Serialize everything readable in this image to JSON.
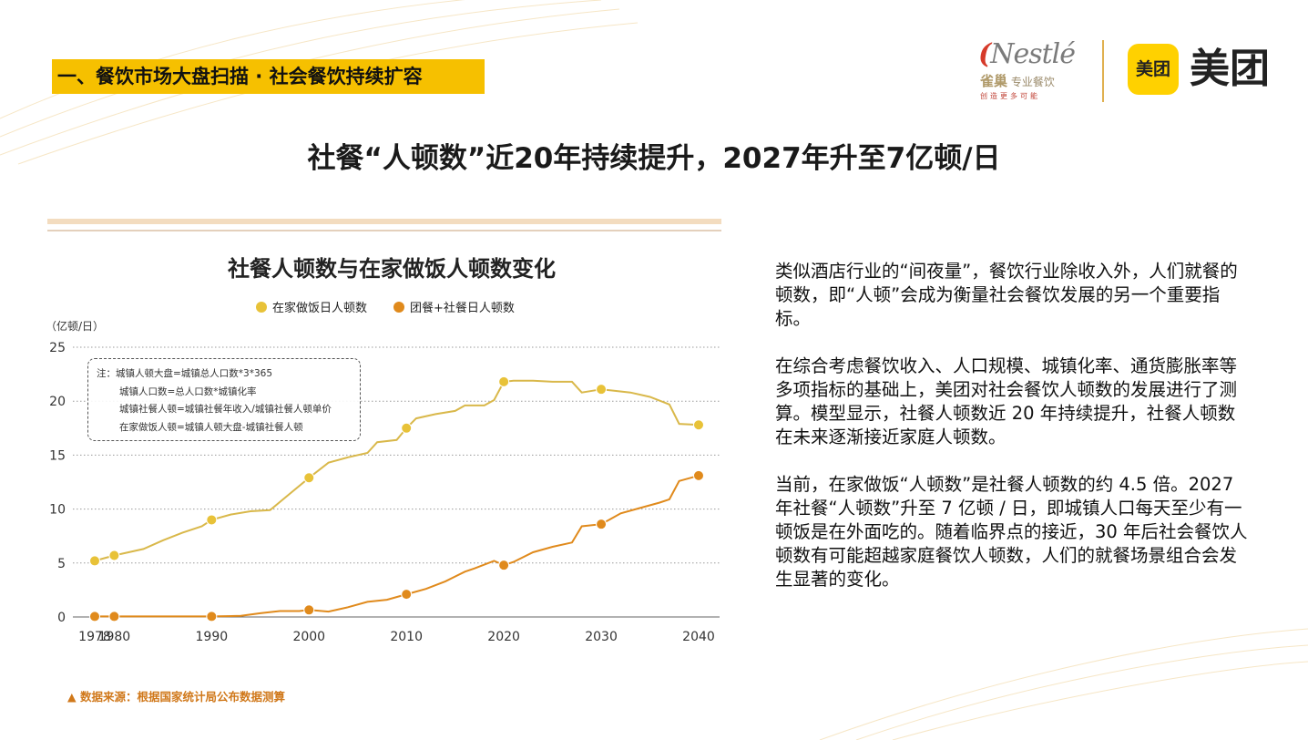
{
  "header": {
    "section_tag": "一、餐饮市场大盘扫描 · 社会餐饮持续扩容",
    "main_title": "社餐“人顿数”近20年持续提升，2027年升至7亿顿/日"
  },
  "logos": {
    "nestle_word": "Nestlé",
    "nestle_cn_brand": "雀巢",
    "nestle_cn_sub": "专业餐饮",
    "nestle_slogan": "创造更多可能",
    "meituan_badge": "美团",
    "meituan_word": "美团",
    "meituan_color": "#ffd100"
  },
  "note": {
    "lines": [
      "注：城镇人顿大盘=城镇总人口数*3*365",
      "城镇人口数=总人口数*城镇化率",
      "城镇社餐人顿=城镇社餐年收入/城镇社餐人顿单价",
      "在家做饭人顿=城镇人顿大盘-城镇社餐人顿"
    ]
  },
  "chart_data": {
    "type": "line",
    "title": "社餐人顿数与在家做饭人顿数变化",
    "ylabel": "（亿顿/日）",
    "xlabel": "",
    "xlim": [
      1978,
      2040
    ],
    "ylim": [
      0,
      25
    ],
    "yticks": [
      0,
      5,
      10,
      15,
      20,
      25
    ],
    "xticks": [
      1978,
      1980,
      1990,
      2000,
      2010,
      2020,
      2030,
      2040
    ],
    "grid": "horizontal-dotted",
    "legend_position": "top-center",
    "series": [
      {
        "name": "在家做饭日人顿数",
        "color": "#e8c238",
        "line_color": "#d9b84a",
        "x": [
          1978,
          1980,
          1981,
          1983,
          1985,
          1987,
          1989,
          1990,
          1992,
          1994,
          1996,
          1998,
          2000,
          2002,
          2004,
          2006,
          2007,
          2009,
          2010,
          2011,
          2013,
          2015,
          2016,
          2018,
          2019,
          2020,
          2021,
          2023,
          2025,
          2027,
          2028,
          2030,
          2031,
          2033,
          2035,
          2037,
          2038,
          2040
        ],
        "values": [
          5.2,
          5.7,
          5.9,
          6.3,
          7.1,
          7.8,
          8.4,
          9.0,
          9.5,
          9.8,
          9.9,
          11.4,
          12.9,
          14.3,
          14.8,
          15.2,
          16.2,
          16.4,
          17.5,
          18.4,
          18.8,
          19.1,
          19.6,
          19.6,
          20.1,
          21.8,
          21.9,
          21.9,
          21.8,
          21.8,
          20.8,
          21.1,
          21.0,
          20.8,
          20.4,
          19.7,
          17.9,
          17.8
        ],
        "markers_at": [
          1978,
          1980,
          1990,
          2000,
          2010,
          2020,
          2030,
          2040
        ]
      },
      {
        "name": "团餐+社餐日人顿数",
        "color": "#e08a1c",
        "line_color": "#e08a1c",
        "x": [
          1978,
          1980,
          1985,
          1990,
          1993,
          1995,
          1997,
          1999,
          2000,
          2002,
          2004,
          2006,
          2008,
          2010,
          2012,
          2014,
          2016,
          2017,
          2019,
          2020,
          2021,
          2023,
          2025,
          2027,
          2028,
          2030,
          2031,
          2032,
          2034,
          2036,
          2037,
          2038,
          2040
        ],
        "values": [
          0.05,
          0.05,
          0.05,
          0.05,
          0.1,
          0.35,
          0.55,
          0.55,
          0.65,
          0.5,
          0.9,
          1.4,
          1.6,
          2.1,
          2.6,
          3.3,
          4.2,
          4.5,
          5.2,
          4.8,
          5.1,
          6.0,
          6.5,
          6.9,
          8.4,
          8.6,
          9.1,
          9.6,
          10.1,
          10.6,
          10.9,
          12.6,
          13.1
        ],
        "markers_at": [
          1978,
          1980,
          1990,
          2000,
          2010,
          2020,
          2030,
          2040
        ]
      }
    ]
  },
  "right_text": {
    "paragraphs": [
      "类似酒店行业的“间夜量”，餐饮行业除收入外，人们就餐的顿数，即“人顿”会成为衡量社会餐饮发展的另一个重要指标。",
      "在综合考虑餐饮收入、人口规模、城镇化率、通货膨胀率等多项指标的基础上，美团对社会餐饮人顿数的发展进行了测算。模型显示，社餐人顿数近 20 年持续提升，社餐人顿数在未来逐渐接近家庭人顿数。",
      "当前，在家做饭“人顿数”是社餐人顿数的约 4.5 倍。2027 年社餐“人顿数”升至 7 亿顿 / 日，即城镇人口每天至少有一顿饭是在外面吃的。随着临界点的接近，30 年后社会餐饮人顿数有可能超越家庭餐饮人顿数，人们的就餐场景组合会发生显著的变化。"
    ]
  },
  "footer": {
    "source": "▲ 数据来源：根据国家统计局公布数据测算"
  }
}
